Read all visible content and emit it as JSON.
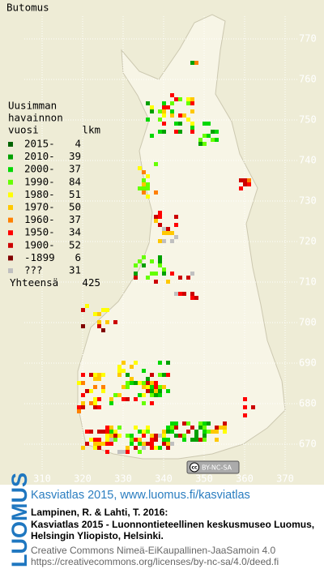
{
  "map": {
    "title": "Butomus",
    "x_labels": [
      310,
      320,
      330,
      340,
      350,
      360,
      370
    ],
    "y_labels": [
      770,
      760,
      750,
      740,
      730,
      720,
      710,
      700,
      690,
      680,
      670
    ]
  },
  "legend": {
    "header": [
      "Uusimman",
      "havainnon",
      "vuosi"
    ],
    "count_header": "lkm",
    "rows": [
      {
        "label": "2015-",
        "count": 4,
        "color": "#006400"
      },
      {
        "label": "2010-",
        "count": 39,
        "color": "#00a000"
      },
      {
        "label": "2000-",
        "count": 37,
        "color": "#00d800"
      },
      {
        "label": "1990-",
        "count": 84,
        "color": "#66ff00"
      },
      {
        "label": "1980-",
        "count": 51,
        "color": "#ffff00"
      },
      {
        "label": "1970-",
        "count": 50,
        "color": "#ffc800"
      },
      {
        "label": "1960-",
        "count": 37,
        "color": "#ff8000"
      },
      {
        "label": "1950-",
        "count": 34,
        "color": "#ff0000"
      },
      {
        "label": "1900-",
        "count": 52,
        "color": "#cc0000"
      },
      {
        "label": "-1899",
        "count": 6,
        "color": "#800000"
      },
      {
        "label": "???",
        "count": 31,
        "color": "#c0c0c0"
      }
    ],
    "total_label": "Yhteensä",
    "total": 425
  },
  "badge": "BY-NC-SA",
  "footer": {
    "logo": "LUOMUS",
    "link": "Kasviatlas 2015, www.luomus.fi/kasviatlas",
    "citation": [
      "Lampinen, R. & Lahti, T. 2016:",
      "Kasviatlas 2015 - Luonnontieteellinen keskusmuseo Luomus,",
      "Helsingin Yliopisto, Helsinki."
    ],
    "license": [
      "Creative Commons Nimeä-EiKaupallinen-JaaSamoin 4.0",
      "https://creativecommons.org/licenses/by-nc-sa/4.0/deed.fi"
    ]
  }
}
